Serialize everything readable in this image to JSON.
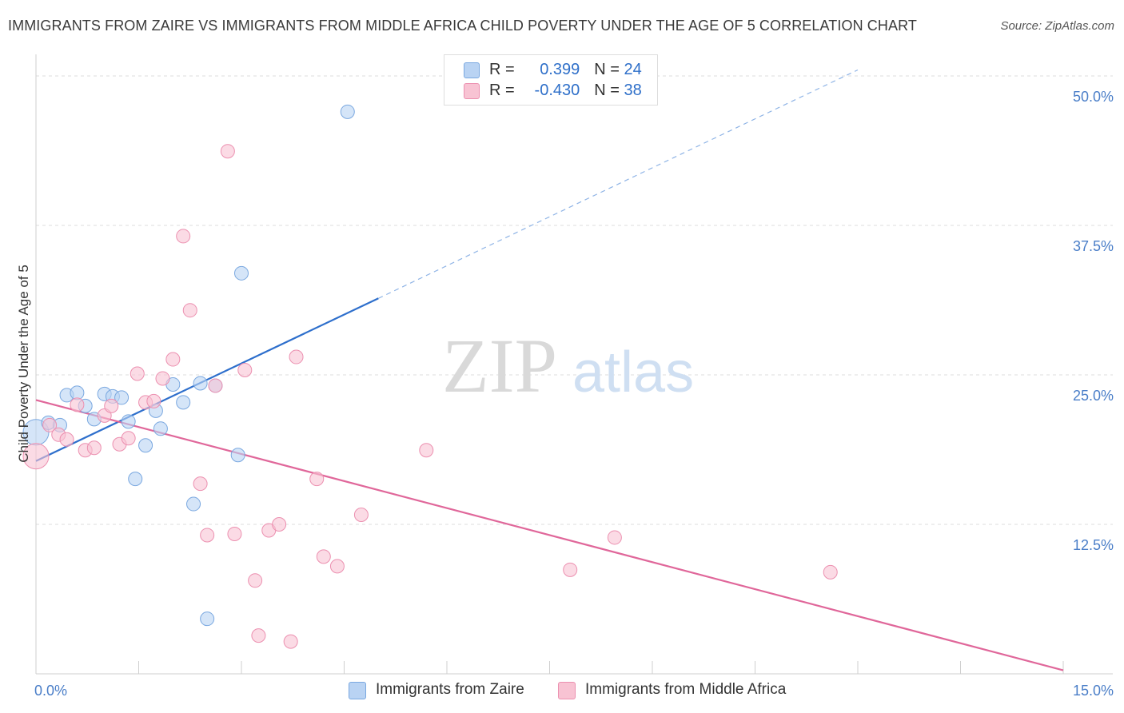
{
  "header": {
    "title": "IMMIGRANTS FROM ZAIRE VS IMMIGRANTS FROM MIDDLE AFRICA CHILD POVERTY UNDER THE AGE OF 5 CORRELATION CHART",
    "source": "Source: ZipAtlas.com"
  },
  "legend": {
    "zaire": {
      "r_label": "R = ",
      "r_value": "0.399",
      "n_label": "N = ",
      "n_value": "24"
    },
    "middle_africa": {
      "r_label": "R = ",
      "r_value": "-0.430",
      "n_label": "N = ",
      "n_value": "38"
    }
  },
  "bottom_legend": {
    "zaire": "Immigrants from Zaire",
    "middle_africa": "Immigrants from Middle Africa"
  },
  "watermark": {
    "zip": "ZIP",
    "atlas": "atlas"
  },
  "colors": {
    "zaire_fill": "#b9d3f3",
    "zaire_stroke": "#7aa8e0",
    "zaire_line": "#2e6fcc",
    "ma_fill": "#f8c3d3",
    "ma_stroke": "#ec90b0",
    "ma_line": "#e0679a",
    "grid": "#dddddd",
    "tick_text": "#4a7ec8"
  },
  "chart_data": {
    "type": "scatter",
    "title": "IMMIGRANTS FROM ZAIRE VS IMMIGRANTS FROM MIDDLE AFRICA CHILD POVERTY UNDER THE AGE OF 5 CORRELATION CHART",
    "xlabel": "",
    "ylabel": "Child Poverty Under the Age of 5",
    "xlim": [
      0,
      15
    ],
    "ylim": [
      0,
      51
    ],
    "x_tick_labels": [
      {
        "value": 0,
        "label": "0.0%"
      },
      {
        "value": 15,
        "label": "15.0%"
      }
    ],
    "y_ticks": [
      {
        "value": 12.5,
        "label": "12.5%"
      },
      {
        "value": 25,
        "label": "25.0%"
      },
      {
        "value": 37.5,
        "label": "37.5%"
      },
      {
        "value": 50,
        "label": "50.0%"
      }
    ],
    "series": [
      {
        "name": "Immigrants from Zaire",
        "key": "zaire",
        "points": [
          {
            "x": 0.0,
            "y": 20.2,
            "big": true
          },
          {
            "x": 0.18,
            "y": 21.0
          },
          {
            "x": 0.35,
            "y": 20.8
          },
          {
            "x": 0.45,
            "y": 23.3
          },
          {
            "x": 0.6,
            "y": 23.5
          },
          {
            "x": 0.72,
            "y": 22.4
          },
          {
            "x": 0.85,
            "y": 21.3
          },
          {
            "x": 1.0,
            "y": 23.4
          },
          {
            "x": 1.12,
            "y": 23.2
          },
          {
            "x": 1.25,
            "y": 23.1
          },
          {
            "x": 1.35,
            "y": 21.1
          },
          {
            "x": 1.45,
            "y": 16.3
          },
          {
            "x": 1.6,
            "y": 19.1
          },
          {
            "x": 1.75,
            "y": 22.0
          },
          {
            "x": 1.82,
            "y": 20.5
          },
          {
            "x": 2.0,
            "y": 24.2
          },
          {
            "x": 2.15,
            "y": 22.7
          },
          {
            "x": 2.3,
            "y": 14.2
          },
          {
            "x": 2.4,
            "y": 24.3
          },
          {
            "x": 2.5,
            "y": 4.6
          },
          {
            "x": 2.62,
            "y": 24.1
          },
          {
            "x": 2.95,
            "y": 18.3
          },
          {
            "x": 3.0,
            "y": 33.5
          },
          {
            "x": 4.55,
            "y": 47.0
          }
        ],
        "trend": {
          "x0": 0.0,
          "y0": 17.8,
          "x1": 5.0,
          "y1": 31.4,
          "dash_to_x": 12.0,
          "dash_to_y": 50.5
        }
      },
      {
        "name": "Immigrants from Middle Africa",
        "key": "middle_africa",
        "points": [
          {
            "x": 0.0,
            "y": 18.2,
            "big": true
          },
          {
            "x": 0.2,
            "y": 20.8
          },
          {
            "x": 0.33,
            "y": 20.0
          },
          {
            "x": 0.45,
            "y": 19.6
          },
          {
            "x": 0.6,
            "y": 22.5
          },
          {
            "x": 0.72,
            "y": 18.7
          },
          {
            "x": 0.85,
            "y": 18.9
          },
          {
            "x": 1.0,
            "y": 21.6
          },
          {
            "x": 1.1,
            "y": 22.4
          },
          {
            "x": 1.22,
            "y": 19.2
          },
          {
            "x": 1.35,
            "y": 19.7
          },
          {
            "x": 1.48,
            "y": 25.1
          },
          {
            "x": 1.6,
            "y": 22.7
          },
          {
            "x": 1.72,
            "y": 22.8
          },
          {
            "x": 1.85,
            "y": 24.7
          },
          {
            "x": 2.0,
            "y": 26.3
          },
          {
            "x": 2.15,
            "y": 36.6
          },
          {
            "x": 2.25,
            "y": 30.4
          },
          {
            "x": 2.4,
            "y": 15.9
          },
          {
            "x": 2.5,
            "y": 11.6
          },
          {
            "x": 2.62,
            "y": 24.1
          },
          {
            "x": 2.8,
            "y": 43.7
          },
          {
            "x": 2.9,
            "y": 11.7
          },
          {
            "x": 3.05,
            "y": 25.4
          },
          {
            "x": 3.2,
            "y": 7.8
          },
          {
            "x": 3.25,
            "y": 3.2
          },
          {
            "x": 3.4,
            "y": 12.0
          },
          {
            "x": 3.55,
            "y": 12.5
          },
          {
            "x": 3.72,
            "y": 2.7
          },
          {
            "x": 3.8,
            "y": 26.5
          },
          {
            "x": 4.1,
            "y": 16.3
          },
          {
            "x": 4.2,
            "y": 9.8
          },
          {
            "x": 4.4,
            "y": 9.0
          },
          {
            "x": 4.75,
            "y": 13.3
          },
          {
            "x": 5.7,
            "y": 18.7
          },
          {
            "x": 7.8,
            "y": 8.7
          },
          {
            "x": 8.45,
            "y": 11.4
          },
          {
            "x": 11.6,
            "y": 8.5
          }
        ],
        "trend": {
          "x0": 0.0,
          "y0": 22.9,
          "x1": 15.0,
          "y1": 0.3
        }
      }
    ]
  }
}
